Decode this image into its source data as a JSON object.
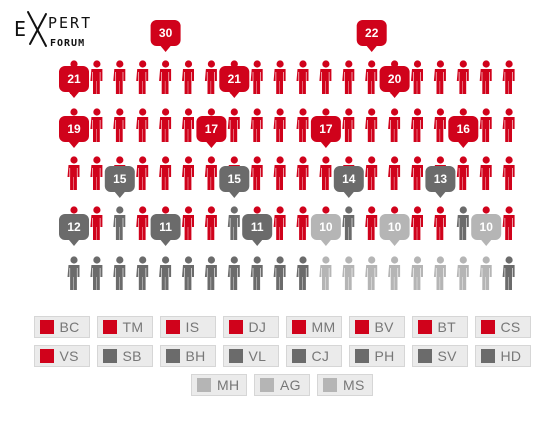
{
  "brand": {
    "line1_a": "E",
    "line1_b": "PERT",
    "line2": "FORUM"
  },
  "colors": {
    "red": "#d0021b",
    "dark": "#6b6b6b",
    "light": "#b5b5b5"
  },
  "chart_data": {
    "type": "pictogram",
    "rows": [
      {
        "color": "red",
        "counts": [],
        "badge_values": [
          30,
          22
        ]
      },
      {
        "color": "red",
        "counts": [],
        "badge_values": [
          21,
          21,
          20
        ]
      },
      {
        "color": "red",
        "counts": [],
        "badge_values": [
          19,
          17,
          17,
          16
        ]
      },
      {
        "color": "mixed",
        "counts": [],
        "badge_values": [
          15,
          15,
          14,
          13
        ]
      },
      {
        "color": "mixed",
        "counts": [],
        "badge_values": [
          12,
          11,
          11,
          10,
          10,
          10
        ]
      },
      {
        "color": "mixed",
        "counts": [],
        "badge_values": []
      }
    ],
    "series": [
      {
        "name": "BC",
        "value": 21,
        "group": "red"
      },
      {
        "name": "TM",
        "value": 30,
        "group": "red"
      },
      {
        "name": "IS",
        "value": 19,
        "group": "red"
      },
      {
        "name": "DJ",
        "value": 21,
        "group": "red"
      },
      {
        "name": "MM",
        "value": 17,
        "group": "red"
      },
      {
        "name": "BV",
        "value": 22,
        "group": "red"
      },
      {
        "name": "BT",
        "value": 20,
        "group": "red"
      },
      {
        "name": "CS",
        "value": 17,
        "group": "red"
      },
      {
        "name": "VS",
        "value": 16,
        "group": "red"
      },
      {
        "name": "SB",
        "value": 15,
        "group": "dark"
      },
      {
        "name": "BH",
        "value": 15,
        "group": "dark"
      },
      {
        "name": "VL",
        "value": 14,
        "group": "dark"
      },
      {
        "name": "CJ",
        "value": 13,
        "group": "dark"
      },
      {
        "name": "PH",
        "value": 12,
        "group": "dark"
      },
      {
        "name": "SV",
        "value": 11,
        "group": "dark"
      },
      {
        "name": "HD",
        "value": 11,
        "group": "dark"
      },
      {
        "name": "MH",
        "value": 10,
        "group": "light"
      },
      {
        "name": "AG",
        "value": 10,
        "group": "light"
      },
      {
        "name": "MS",
        "value": 10,
        "group": "light"
      }
    ]
  },
  "legend": {
    "rows": [
      [
        {
          "label": "BC",
          "group": "red"
        },
        {
          "label": "TM",
          "group": "red"
        },
        {
          "label": "IS",
          "group": "red"
        },
        {
          "label": "DJ",
          "group": "red"
        },
        {
          "label": "MM",
          "group": "red"
        },
        {
          "label": "BV",
          "group": "red"
        },
        {
          "label": "BT",
          "group": "red"
        },
        {
          "label": "CS",
          "group": "red"
        }
      ],
      [
        {
          "label": "VS",
          "group": "red"
        },
        {
          "label": "SB",
          "group": "dark"
        },
        {
          "label": "BH",
          "group": "dark"
        },
        {
          "label": "VL",
          "group": "dark"
        },
        {
          "label": "CJ",
          "group": "dark"
        },
        {
          "label": "PH",
          "group": "dark"
        },
        {
          "label": "SV",
          "group": "dark"
        },
        {
          "label": "HD",
          "group": "dark"
        }
      ],
      [
        {
          "label": "MH",
          "group": "light"
        },
        {
          "label": "AG",
          "group": "light"
        },
        {
          "label": "MS",
          "group": "light"
        }
      ]
    ]
  }
}
